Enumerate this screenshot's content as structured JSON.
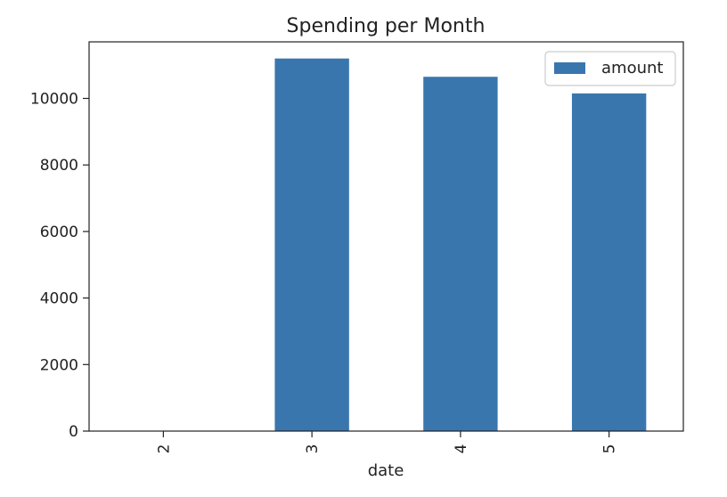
{
  "chart_data": {
    "type": "bar",
    "title": "Spending per Month",
    "xlabel": "date",
    "ylabel": "",
    "categories": [
      "2",
      "3",
      "4",
      "5"
    ],
    "series": [
      {
        "name": "amount",
        "color": "#3a76ae",
        "values": [
          0,
          11200,
          10650,
          10150
        ]
      }
    ],
    "ylim": [
      0,
      11700
    ],
    "yticks": [
      0,
      2000,
      4000,
      6000,
      8000,
      10000
    ],
    "ytick_labels": [
      "0",
      "2000",
      "4000",
      "6000",
      "8000",
      "10000"
    ],
    "grid": false,
    "legend_position": "top-right",
    "xtick_rotation": "vertical"
  }
}
